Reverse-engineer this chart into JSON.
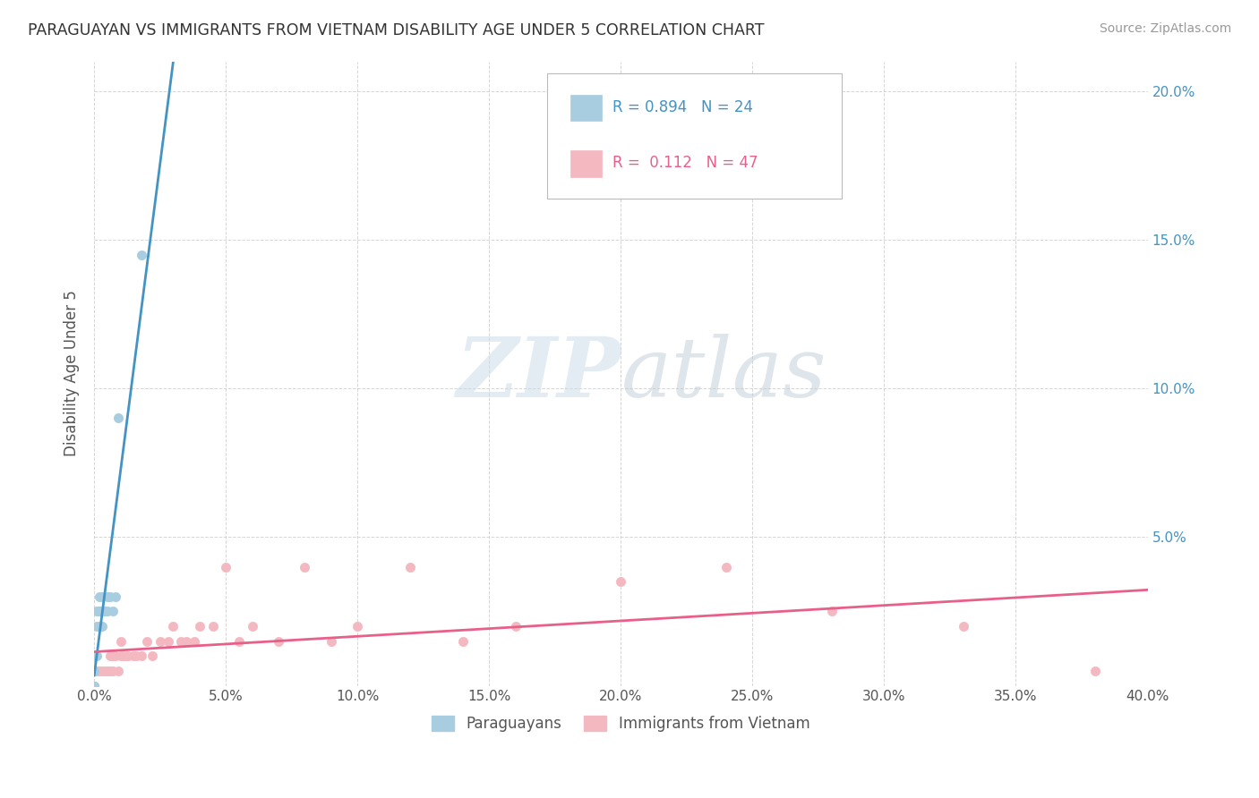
{
  "title": "PARAGUAYAN VS IMMIGRANTS FROM VIETNAM DISABILITY AGE UNDER 5 CORRELATION CHART",
  "source": "Source: ZipAtlas.com",
  "ylabel": "Disability Age Under 5",
  "watermark": "ZIPatlas",
  "xlim": [
    0.0,
    0.4
  ],
  "ylim": [
    0.0,
    0.21
  ],
  "xtick_vals": [
    0.0,
    0.05,
    0.1,
    0.15,
    0.2,
    0.25,
    0.3,
    0.35,
    0.4
  ],
  "ytick_vals": [
    0.0,
    0.05,
    0.1,
    0.15,
    0.2
  ],
  "color_paraguayan": "#a8cce0",
  "color_vietnam": "#f4b8c1",
  "trendline_paraguayan": "#4393c3",
  "trendline_vietnam": "#e8608a",
  "paraguayan_x": [
    0.0,
    0.0,
    0.0,
    0.0,
    0.0,
    0.001,
    0.001,
    0.001,
    0.002,
    0.002,
    0.002,
    0.002,
    0.003,
    0.003,
    0.003,
    0.003,
    0.004,
    0.005,
    0.005,
    0.006,
    0.007,
    0.008,
    0.009,
    0.018
  ],
  "paraguayan_y": [
    0.0,
    0.0,
    0.0,
    0.005,
    0.01,
    0.01,
    0.02,
    0.025,
    0.02,
    0.025,
    0.025,
    0.03,
    0.02,
    0.025,
    0.025,
    0.03,
    0.025,
    0.025,
    0.03,
    0.03,
    0.025,
    0.03,
    0.09,
    0.145
  ],
  "vietnam_x": [
    0.0,
    0.0,
    0.001,
    0.002,
    0.003,
    0.004,
    0.005,
    0.005,
    0.006,
    0.006,
    0.007,
    0.007,
    0.008,
    0.009,
    0.01,
    0.01,
    0.011,
    0.012,
    0.013,
    0.015,
    0.016,
    0.018,
    0.02,
    0.022,
    0.025,
    0.028,
    0.03,
    0.033,
    0.035,
    0.038,
    0.04,
    0.045,
    0.05,
    0.055,
    0.06,
    0.07,
    0.08,
    0.09,
    0.1,
    0.12,
    0.14,
    0.16,
    0.2,
    0.24,
    0.28,
    0.33,
    0.38
  ],
  "vietnam_y": [
    0.0,
    0.0,
    0.005,
    0.005,
    0.005,
    0.005,
    0.005,
    0.005,
    0.005,
    0.01,
    0.005,
    0.01,
    0.01,
    0.005,
    0.01,
    0.015,
    0.01,
    0.01,
    0.01,
    0.01,
    0.01,
    0.01,
    0.015,
    0.01,
    0.015,
    0.015,
    0.02,
    0.015,
    0.015,
    0.015,
    0.02,
    0.02,
    0.04,
    0.015,
    0.02,
    0.015,
    0.04,
    0.015,
    0.02,
    0.04,
    0.015,
    0.02,
    0.035,
    0.04,
    0.025,
    0.02,
    0.005
  ],
  "background_color": "#ffffff",
  "grid_color": "#cccccc",
  "legend_text_blue": "#4393c3",
  "legend_text_pink": "#e8608a"
}
